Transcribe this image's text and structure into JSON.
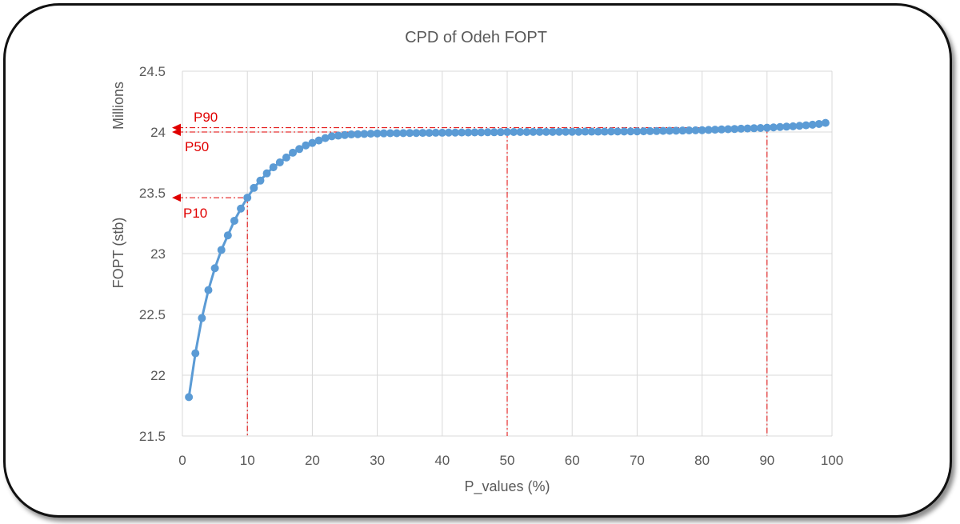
{
  "chart_data": {
    "type": "line",
    "title": "CPD of Odeh FOPT",
    "xlabel": "P_values (%)",
    "ylabel": "FOPT (stb)",
    "yunit_label": "Millions",
    "xlim": [
      0,
      100
    ],
    "ylim": [
      21.5,
      24.5
    ],
    "xticks": [
      0,
      10,
      20,
      30,
      40,
      50,
      60,
      70,
      80,
      90,
      100
    ],
    "xtick_labels": [
      "0",
      "10",
      "20",
      "30",
      "40",
      "50",
      "60",
      "70",
      "80",
      "90",
      "100"
    ],
    "yticks": [
      21.5,
      22,
      22.5,
      23,
      23.5,
      24,
      24.5
    ],
    "ytick_labels": [
      "21.5",
      "22",
      "22.5",
      "23",
      "23.5",
      "24",
      "24.5"
    ],
    "grid": true,
    "series": [
      {
        "name": "FOPT",
        "color": "#5b9bd5",
        "x": [
          1,
          2,
          3,
          4,
          5,
          6,
          7,
          8,
          9,
          10,
          11,
          12,
          13,
          14,
          15,
          16,
          17,
          18,
          19,
          20,
          21,
          22,
          23,
          24,
          25,
          26,
          27,
          28,
          29,
          30,
          31,
          32,
          33,
          34,
          35,
          36,
          37,
          38,
          39,
          40,
          41,
          42,
          43,
          44,
          45,
          46,
          47,
          48,
          49,
          50,
          51,
          52,
          53,
          54,
          55,
          56,
          57,
          58,
          59,
          60,
          61,
          62,
          63,
          64,
          65,
          66,
          67,
          68,
          69,
          70,
          71,
          72,
          73,
          74,
          75,
          76,
          77,
          78,
          79,
          80,
          81,
          82,
          83,
          84,
          85,
          86,
          87,
          88,
          89,
          90,
          91,
          92,
          93,
          94,
          95,
          96,
          97,
          98,
          99
        ],
        "values": [
          21.82,
          22.18,
          22.47,
          22.7,
          22.88,
          23.03,
          23.15,
          23.27,
          23.37,
          23.46,
          23.54,
          23.6,
          23.66,
          23.71,
          23.75,
          23.79,
          23.83,
          23.86,
          23.89,
          23.91,
          23.93,
          23.95,
          23.965,
          23.97,
          23.975,
          23.98,
          23.982,
          23.984,
          23.986,
          23.988,
          23.989,
          23.99,
          23.99,
          23.991,
          23.992,
          23.992,
          23.993,
          23.993,
          23.994,
          23.994,
          23.995,
          23.995,
          23.996,
          23.996,
          23.997,
          23.997,
          23.998,
          23.998,
          23.999,
          24.0,
          24.0,
          24.0,
          24.0,
          24.001,
          24.001,
          24.001,
          24.001,
          24.002,
          24.002,
          24.002,
          24.002,
          24.003,
          24.003,
          24.003,
          24.003,
          24.004,
          24.004,
          24.004,
          24.005,
          24.005,
          24.006,
          24.007,
          24.008,
          24.009,
          24.01,
          24.011,
          24.012,
          24.013,
          24.014,
          24.015,
          24.017,
          24.019,
          24.021,
          24.023,
          24.025,
          24.027,
          24.029,
          24.031,
          24.033,
          24.035,
          24.038,
          24.041,
          24.044,
          24.047,
          24.051,
          24.055,
          24.06,
          24.066,
          24.075
        ]
      }
    ],
    "reference_lines": [
      {
        "label": "P10",
        "x": 10,
        "y": 23.46,
        "color": "#e00000"
      },
      {
        "label": "P50",
        "x": 50,
        "y": 24.0,
        "color": "#e00000"
      },
      {
        "label": "P90",
        "x": 90,
        "y": 24.035,
        "color": "#e00000"
      }
    ],
    "colors": {
      "axis_text": "#595959",
      "grid": "#d9d9d9",
      "marker": "#5b9bd5",
      "reference": "#e00000"
    }
  }
}
